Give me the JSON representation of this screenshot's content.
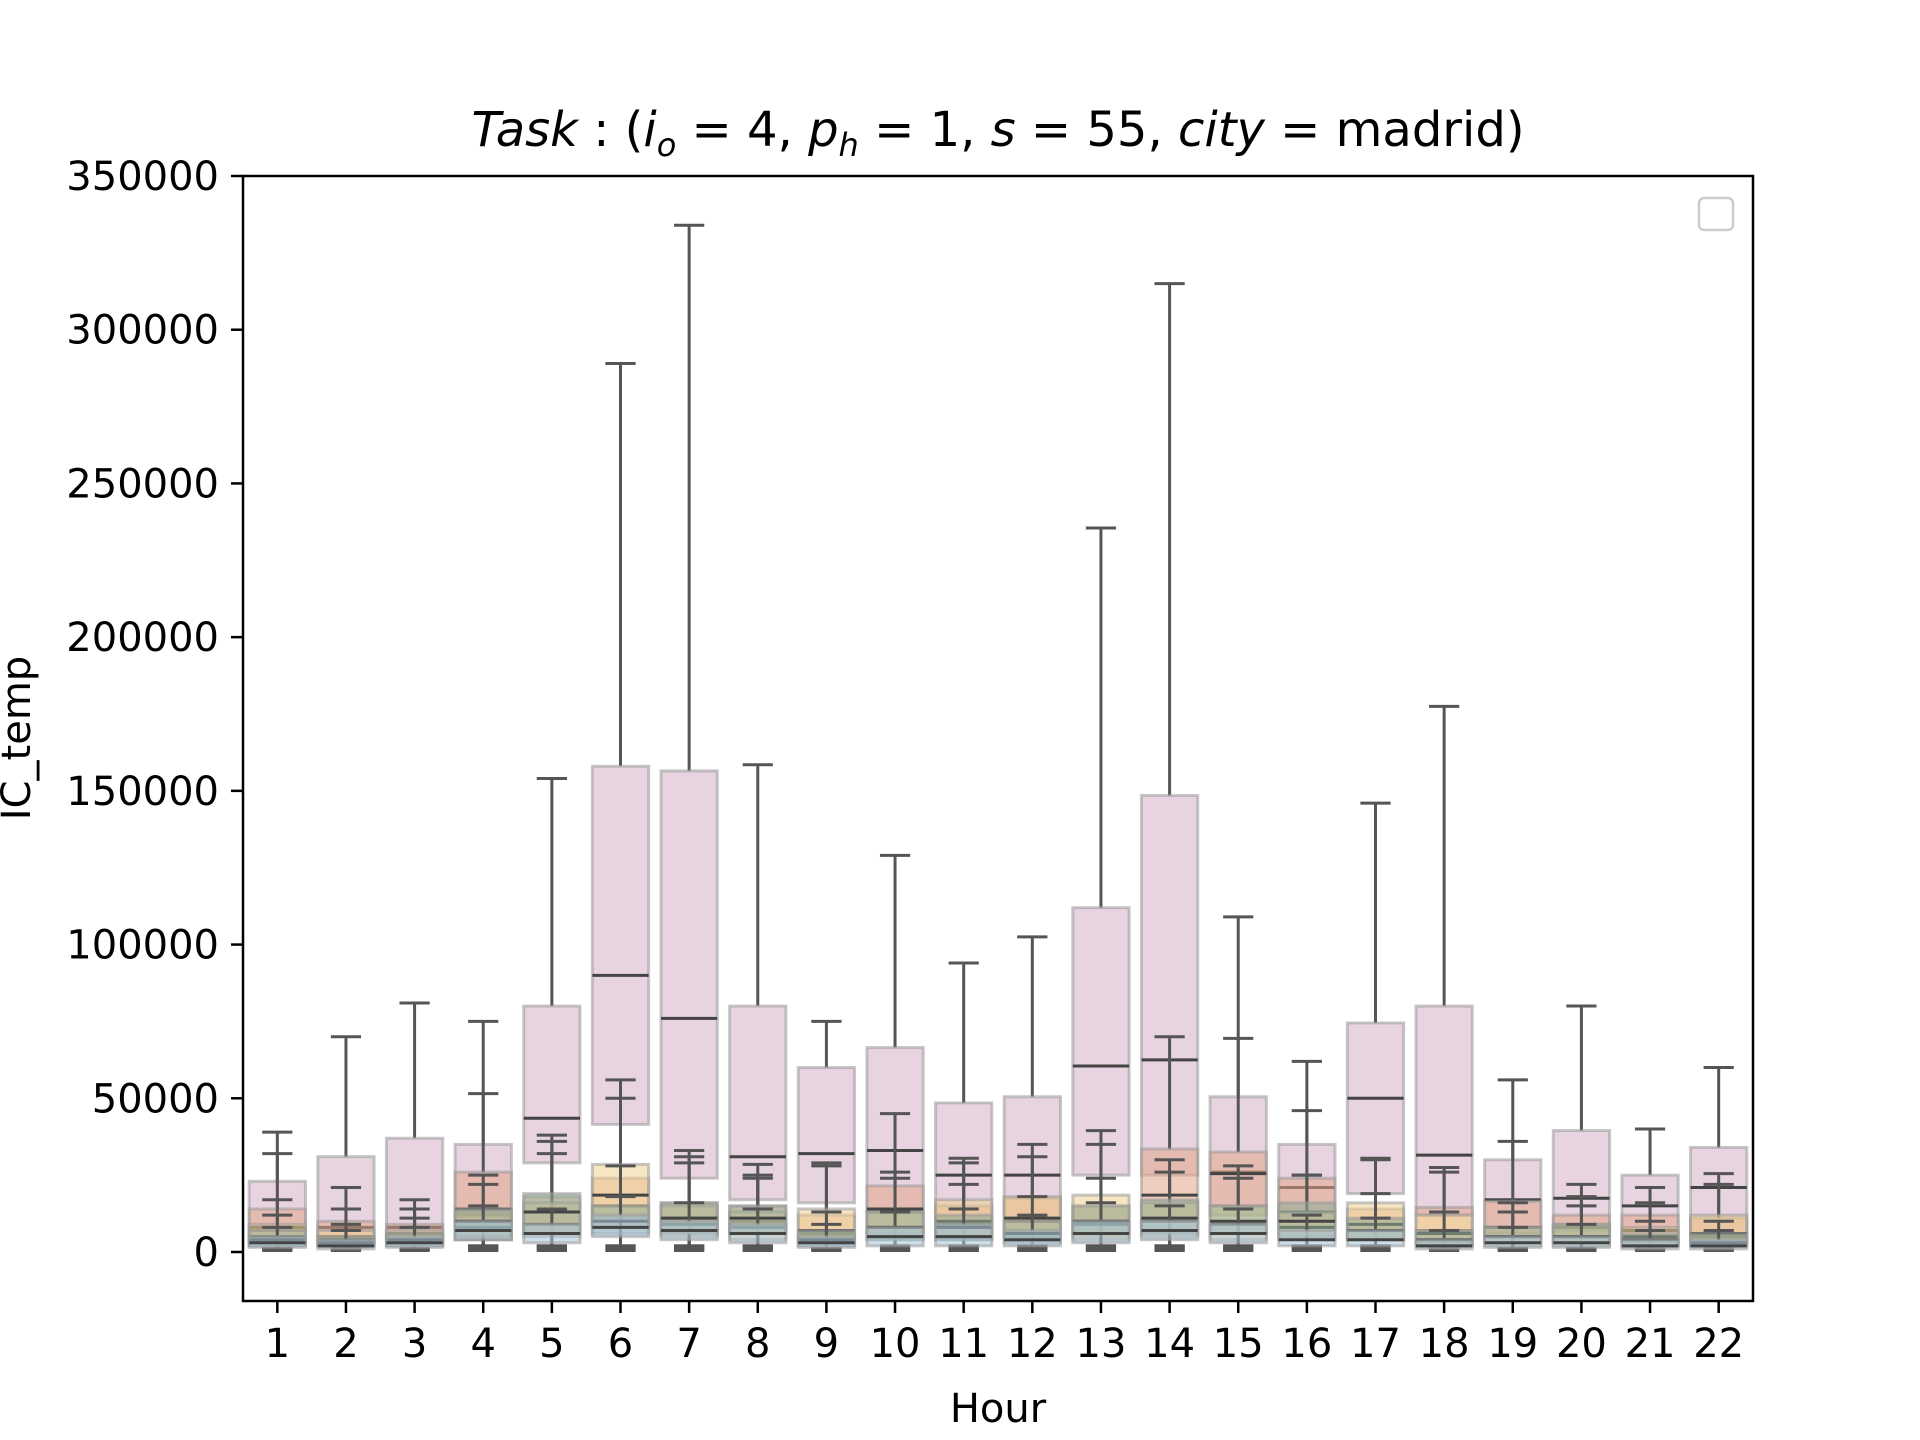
{
  "chart_data": {
    "type": "box",
    "title_parts": {
      "task": "Task",
      "sep": " : (",
      "io_sym": "i",
      "io_sub": "o",
      "io_eq": " = 4, ",
      "ph_sym": "p",
      "ph_sub": "h",
      "ph_eq": " = 1, ",
      "s_sym": "s",
      "s_eq": " = 55, ",
      "city_sym": "city",
      "city_eq": " = madrid)"
    },
    "xlabel": "Hour",
    "ylabel": "IC_temp",
    "ylim": [
      -16000,
      350000
    ],
    "yticks": [
      0,
      50000,
      100000,
      150000,
      200000,
      250000,
      300000,
      350000
    ],
    "ytick_labels": [
      "0",
      "50000",
      "100000",
      "150000",
      "200000",
      "250000",
      "300000",
      "350000"
    ],
    "categories": [
      "1",
      "2",
      "3",
      "4",
      "5",
      "6",
      "7",
      "8",
      "9",
      "10",
      "11",
      "12",
      "13",
      "14",
      "15",
      "16",
      "17",
      "18",
      "19",
      "20",
      "21",
      "22"
    ],
    "legend": {
      "placement": "top-right",
      "entries": []
    },
    "series": [
      {
        "color": "#d6b0c8",
        "boxes": [
          {
            "whislo": 1000,
            "q1": 3000,
            "med": 7000,
            "q3": 23000,
            "whishi": 39000
          },
          {
            "whislo": 1000,
            "q1": 3000,
            "med": 8000,
            "q3": 31000,
            "whishi": 70000
          },
          {
            "whislo": 1000,
            "q1": 3000,
            "med": 8000,
            "q3": 37000,
            "whishi": 81000
          },
          {
            "whislo": 2000,
            "q1": 4000,
            "med": 12000,
            "q3": 35000,
            "whishi": 75000
          },
          {
            "whislo": 2000,
            "q1": 29000,
            "med": 43500,
            "q3": 80000,
            "whishi": 154000
          },
          {
            "whislo": 2000,
            "q1": 41500,
            "med": 90000,
            "q3": 158000,
            "whishi": 289000
          },
          {
            "whislo": 2000,
            "q1": 24000,
            "med": 76000,
            "q3": 156500,
            "whishi": 334000
          },
          {
            "whislo": 2000,
            "q1": 17000,
            "med": 31000,
            "q3": 80000,
            "whishi": 158500
          },
          {
            "whislo": 1000,
            "q1": 16000,
            "med": 32000,
            "q3": 60000,
            "whishi": 75000
          },
          {
            "whislo": 2000,
            "q1": 13000,
            "med": 33000,
            "q3": 66500,
            "whishi": 129000
          },
          {
            "whislo": 2000,
            "q1": 10000,
            "med": 25000,
            "q3": 48500,
            "whishi": 94000
          },
          {
            "whislo": 2000,
            "q1": 11000,
            "med": 25000,
            "q3": 50500,
            "whishi": 102500
          },
          {
            "whislo": 2000,
            "q1": 25000,
            "med": 60500,
            "q3": 112000,
            "whishi": 235500
          },
          {
            "whislo": 2000,
            "q1": 25000,
            "med": 62500,
            "q3": 148500,
            "whishi": 315000
          },
          {
            "whislo": 2000,
            "q1": 15000,
            "med": 26000,
            "q3": 50500,
            "whishi": 109000
          },
          {
            "whislo": 2000,
            "q1": 10000,
            "med": 21000,
            "q3": 35000,
            "whishi": 62000
          },
          {
            "whislo": 2000,
            "q1": 19000,
            "med": 50000,
            "q3": 74500,
            "whishi": 146000
          },
          {
            "whislo": 2000,
            "q1": 12000,
            "med": 31500,
            "q3": 80000,
            "whishi": 177500
          },
          {
            "whislo": 1000,
            "q1": 6000,
            "med": 17000,
            "q3": 30000,
            "whishi": 56000
          },
          {
            "whislo": 1000,
            "q1": 7000,
            "med": 17500,
            "q3": 39500,
            "whishi": 80000
          },
          {
            "whislo": 1000,
            "q1": 4000,
            "med": 15000,
            "q3": 25000,
            "whishi": 40000
          },
          {
            "whislo": 1000,
            "q1": 6000,
            "med": 21000,
            "q3": 34000,
            "whishi": 60000
          }
        ]
      },
      {
        "color": "#e2a68a",
        "boxes": [
          {
            "whislo": 1000,
            "q1": 3000,
            "med": 8000,
            "q3": 14000,
            "whishi": 32000
          },
          {
            "whislo": 1000,
            "q1": 2000,
            "med": 5000,
            "q3": 10000,
            "whishi": 21000
          },
          {
            "whislo": 1000,
            "q1": 3000,
            "med": 6000,
            "q3": 9000,
            "whishi": 17000
          },
          {
            "whislo": 2000,
            "q1": 9000,
            "med": 14000,
            "q3": 26000,
            "whishi": 51500
          },
          {
            "whislo": 2000,
            "q1": 6000,
            "med": 13000,
            "q3": 18000,
            "whishi": 38000
          },
          {
            "whislo": 2000,
            "q1": 8000,
            "med": 15000,
            "q3": 24000,
            "whishi": 56000
          },
          {
            "whislo": 2000,
            "q1": 6000,
            "med": 11000,
            "q3": 16000,
            "whishi": 33000
          },
          {
            "whislo": 2000,
            "q1": 6000,
            "med": 10000,
            "q3": 15000,
            "whishi": 28500
          },
          {
            "whislo": 1000,
            "q1": 3000,
            "med": 6000,
            "q3": 12000,
            "whishi": 29000
          },
          {
            "whislo": 2000,
            "q1": 6000,
            "med": 14000,
            "q3": 21500,
            "whishi": 45000
          },
          {
            "whislo": 2000,
            "q1": 4000,
            "med": 9000,
            "q3": 15000,
            "whishi": 30500
          },
          {
            "whislo": 2000,
            "q1": 5000,
            "med": 10000,
            "q3": 17500,
            "whishi": 35000
          },
          {
            "whislo": 2000,
            "q1": 5000,
            "med": 10000,
            "q3": 15000,
            "whishi": 39500
          },
          {
            "whislo": 2000,
            "q1": 10000,
            "med": 18500,
            "q3": 33500,
            "whishi": 70000
          },
          {
            "whislo": 2000,
            "q1": 12000,
            "med": 25500,
            "q3": 32500,
            "whishi": 69500
          },
          {
            "whislo": 2000,
            "q1": 8000,
            "med": 13000,
            "q3": 24000,
            "whishi": 46000
          },
          {
            "whislo": 2000,
            "q1": 4000,
            "med": 9000,
            "q3": 14000,
            "whishi": 30500
          },
          {
            "whislo": 2000,
            "q1": 3000,
            "med": 7000,
            "q3": 14500,
            "whishi": 27500
          },
          {
            "whislo": 1000,
            "q1": 5000,
            "med": 8000,
            "q3": 16500,
            "whishi": 36000
          },
          {
            "whislo": 1000,
            "q1": 3000,
            "med": 8000,
            "q3": 12000,
            "whishi": 22000
          },
          {
            "whislo": 1000,
            "q1": 3000,
            "med": 7000,
            "q3": 12000,
            "whishi": 21000
          },
          {
            "whislo": 1000,
            "q1": 3000,
            "med": 5000,
            "q3": 11000,
            "whishi": 25500
          }
        ]
      },
      {
        "color": "#eed294",
        "boxes": [
          {
            "whislo": 1000,
            "q1": 2000,
            "med": 5000,
            "q3": 9000,
            "whishi": 17000
          },
          {
            "whislo": 1000,
            "q1": 2000,
            "med": 4000,
            "q3": 7000,
            "whishi": 14000
          },
          {
            "whislo": 1000,
            "q1": 2000,
            "med": 4000,
            "q3": 7000,
            "whishi": 14000
          },
          {
            "whislo": 1000,
            "q1": 4000,
            "med": 8000,
            "q3": 13000,
            "whishi": 25000
          },
          {
            "whislo": 1000,
            "q1": 5000,
            "med": 9000,
            "q3": 16000,
            "whishi": 32000
          },
          {
            "whislo": 1000,
            "q1": 11000,
            "med": 18500,
            "q3": 28500,
            "whishi": 50000
          },
          {
            "whislo": 1000,
            "q1": 5000,
            "med": 9000,
            "q3": 15000,
            "whishi": 31000
          },
          {
            "whislo": 1000,
            "q1": 4000,
            "med": 8000,
            "q3": 13000,
            "whishi": 24000
          },
          {
            "whislo": 1000,
            "q1": 3000,
            "med": 7000,
            "q3": 14000,
            "whishi": 28000
          },
          {
            "whislo": 1000,
            "q1": 4000,
            "med": 8000,
            "q3": 13000,
            "whishi": 26000
          },
          {
            "whislo": 1000,
            "q1": 5000,
            "med": 10000,
            "q3": 17000,
            "whishi": 29000
          },
          {
            "whislo": 1000,
            "q1": 5000,
            "med": 11000,
            "q3": 18000,
            "whishi": 31000
          },
          {
            "whislo": 1000,
            "q1": 4000,
            "med": 9000,
            "q3": 18500,
            "whishi": 35000
          },
          {
            "whislo": 1000,
            "q1": 5000,
            "med": 10000,
            "q3": 16000,
            "whishi": 30000
          },
          {
            "whislo": 1000,
            "q1": 4000,
            "med": 9000,
            "q3": 15000,
            "whishi": 28000
          },
          {
            "whislo": 1000,
            "q1": 4000,
            "med": 8000,
            "q3": 13000,
            "whishi": 25000
          },
          {
            "whislo": 1000,
            "q1": 4000,
            "med": 9000,
            "q3": 16000,
            "whishi": 30000
          },
          {
            "whislo": 1000,
            "q1": 2000,
            "med": 6000,
            "q3": 12000,
            "whishi": 26000
          },
          {
            "whislo": 1000,
            "q1": 2000,
            "med": 5000,
            "q3": 8000,
            "whishi": 16000
          },
          {
            "whislo": 1000,
            "q1": 2000,
            "med": 5000,
            "q3": 9000,
            "whishi": 18000
          },
          {
            "whislo": 1000,
            "q1": 2000,
            "med": 5000,
            "q3": 8000,
            "whishi": 16000
          },
          {
            "whislo": 1000,
            "q1": 3000,
            "med": 6000,
            "q3": 12000,
            "whishi": 22000
          }
        ]
      },
      {
        "color": "#8fab95",
        "boxes": [
          {
            "whislo": 1000,
            "q1": 2000,
            "med": 4000,
            "q3": 7000,
            "whishi": 12000
          },
          {
            "whislo": 1000,
            "q1": 2000,
            "med": 3000,
            "q3": 5000,
            "whishi": 9000
          },
          {
            "whislo": 1000,
            "q1": 2000,
            "med": 4000,
            "q3": 6000,
            "whishi": 11000
          },
          {
            "whislo": 1000,
            "q1": 5000,
            "med": 10000,
            "q3": 14000,
            "whishi": 22000
          },
          {
            "whislo": 1000,
            "q1": 6000,
            "med": 13000,
            "q3": 19000,
            "whishi": 36000
          },
          {
            "whislo": 1000,
            "q1": 6000,
            "med": 10000,
            "q3": 15000,
            "whishi": 28000
          },
          {
            "whislo": 1000,
            "q1": 6000,
            "med": 11000,
            "q3": 16000,
            "whishi": 29000
          },
          {
            "whislo": 1000,
            "q1": 6000,
            "med": 11000,
            "q3": 15000,
            "whishi": 25000
          },
          {
            "whislo": 1000,
            "q1": 2000,
            "med": 4000,
            "q3": 7000,
            "whishi": 13000
          },
          {
            "whislo": 1000,
            "q1": 4000,
            "med": 8000,
            "q3": 13000,
            "whishi": 24000
          },
          {
            "whislo": 1000,
            "q1": 4000,
            "med": 8000,
            "q3": 12000,
            "whishi": 22000
          },
          {
            "whislo": 1000,
            "q1": 3000,
            "med": 6000,
            "q3": 10000,
            "whishi": 18000
          },
          {
            "whislo": 1000,
            "q1": 6000,
            "med": 10000,
            "q3": 15000,
            "whishi": 24000
          },
          {
            "whislo": 1000,
            "q1": 6000,
            "med": 11000,
            "q3": 17000,
            "whishi": 26000
          },
          {
            "whislo": 1000,
            "q1": 6000,
            "med": 10000,
            "q3": 15000,
            "whishi": 24000
          },
          {
            "whislo": 1000,
            "q1": 5000,
            "med": 10000,
            "q3": 16000,
            "whishi": 25000
          },
          {
            "whislo": 1000,
            "q1": 4000,
            "med": 7000,
            "q3": 11000,
            "whishi": 19000
          },
          {
            "whislo": 1000,
            "q1": 2000,
            "med": 4000,
            "q3": 7000,
            "whishi": 13000
          },
          {
            "whislo": 1000,
            "q1": 3000,
            "med": 5000,
            "q3": 8000,
            "whishi": 13000
          },
          {
            "whislo": 1000,
            "q1": 3000,
            "med": 5000,
            "q3": 9000,
            "whishi": 15000
          },
          {
            "whislo": 1000,
            "q1": 2000,
            "med": 4000,
            "q3": 6000,
            "whishi": 10000
          },
          {
            "whislo": 1000,
            "q1": 2000,
            "med": 3000,
            "q3": 6000,
            "whishi": 10000
          }
        ]
      },
      {
        "color": "#a8c4d8",
        "boxes": [
          {
            "whislo": 500,
            "q1": 1500,
            "med": 3000,
            "q3": 5000,
            "whishi": 8000
          },
          {
            "whislo": 500,
            "q1": 1000,
            "med": 2000,
            "q3": 4000,
            "whishi": 7000
          },
          {
            "whislo": 500,
            "q1": 1500,
            "med": 3000,
            "q3": 5000,
            "whishi": 8000
          },
          {
            "whislo": 500,
            "q1": 4000,
            "med": 7000,
            "q3": 10000,
            "whishi": 15000
          },
          {
            "whislo": 500,
            "q1": 3000,
            "med": 6000,
            "q3": 9000,
            "whishi": 14000
          },
          {
            "whislo": 500,
            "q1": 5000,
            "med": 8000,
            "q3": 12000,
            "whishi": 18000
          },
          {
            "whislo": 500,
            "q1": 4000,
            "med": 7000,
            "q3": 10000,
            "whishi": 16000
          },
          {
            "whislo": 500,
            "q1": 3000,
            "med": 6000,
            "q3": 9000,
            "whishi": 14000
          },
          {
            "whislo": 500,
            "q1": 1500,
            "med": 3000,
            "q3": 5000,
            "whishi": 9000
          },
          {
            "whislo": 500,
            "q1": 2000,
            "med": 5000,
            "q3": 8000,
            "whishi": 13000
          },
          {
            "whislo": 500,
            "q1": 2000,
            "med": 5000,
            "q3": 9000,
            "whishi": 14000
          },
          {
            "whislo": 500,
            "q1": 2000,
            "med": 4000,
            "q3": 7000,
            "whishi": 12000
          },
          {
            "whislo": 500,
            "q1": 3000,
            "med": 6000,
            "q3": 10000,
            "whishi": 16000
          },
          {
            "whislo": 500,
            "q1": 4000,
            "med": 7000,
            "q3": 10000,
            "whishi": 15000
          },
          {
            "whislo": 500,
            "q1": 3000,
            "med": 6000,
            "q3": 9000,
            "whishi": 14000
          },
          {
            "whislo": 500,
            "q1": 2000,
            "med": 4000,
            "q3": 7000,
            "whishi": 12000
          },
          {
            "whislo": 500,
            "q1": 2000,
            "med": 4000,
            "q3": 7000,
            "whishi": 11000
          },
          {
            "whislo": 500,
            "q1": 1000,
            "med": 2000,
            "q3": 4000,
            "whishi": 7000
          },
          {
            "whislo": 500,
            "q1": 1500,
            "med": 3000,
            "q3": 5000,
            "whishi": 8000
          },
          {
            "whislo": 500,
            "q1": 1500,
            "med": 3000,
            "q3": 5000,
            "whishi": 9000
          },
          {
            "whislo": 500,
            "q1": 1000,
            "med": 2000,
            "q3": 4000,
            "whishi": 7000
          },
          {
            "whislo": 500,
            "q1": 1000,
            "med": 2000,
            "q3": 4000,
            "whishi": 7000
          }
        ]
      }
    ]
  }
}
